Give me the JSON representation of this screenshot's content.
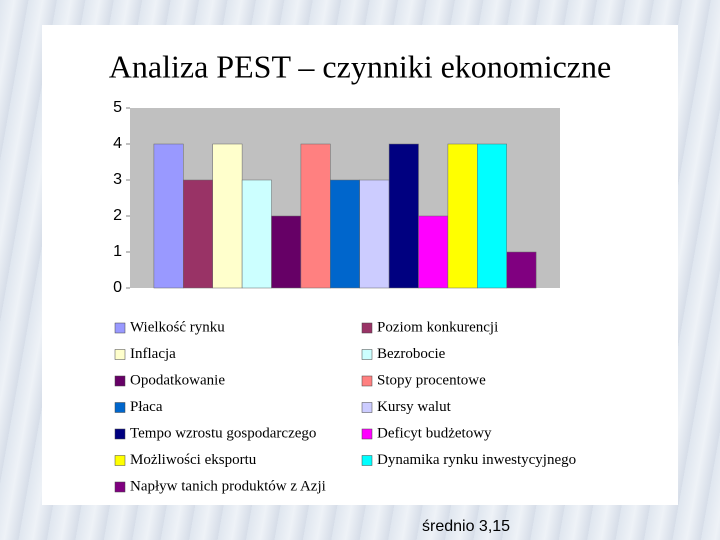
{
  "chart_data": {
    "type": "bar",
    "title": "Analiza PEST – czynniki ekonomiczne",
    "series": [
      {
        "name": "Wielkość rynku",
        "color": "#9999ff",
        "values": [
          4
        ]
      },
      {
        "name": "Poziom konkurencji",
        "color": "#993366",
        "values": [
          3
        ]
      },
      {
        "name": "Inflacja",
        "color": "#ffffcc",
        "values": [
          4
        ]
      },
      {
        "name": "Bezrobocie",
        "color": "#ccffff",
        "values": [
          3
        ]
      },
      {
        "name": "Opodatkowanie",
        "color": "#660066",
        "values": [
          2
        ]
      },
      {
        "name": "Stopy procentowe",
        "color": "#ff8080",
        "values": [
          4
        ]
      },
      {
        "name": "Płaca",
        "color": "#0066cc",
        "values": [
          3
        ]
      },
      {
        "name": "Kursy walut",
        "color": "#ccccff",
        "values": [
          3
        ]
      },
      {
        "name": "Tempo wzrostu gospodarczego",
        "color": "#000080",
        "values": [
          4
        ]
      },
      {
        "name": "Deficyt budżetowy",
        "color": "#ff00ff",
        "values": [
          2
        ]
      },
      {
        "name": "Możliwości eksportu",
        "color": "#ffff00",
        "values": [
          4
        ]
      },
      {
        "name": "Dynamika rynku inwestycyjnego",
        "color": "#00ffff",
        "values": [
          4
        ]
      },
      {
        "name": "Napływ tanich produktów z Azji",
        "color": "#800080",
        "values": [
          1
        ]
      }
    ],
    "ylim": [
      0,
      5
    ],
    "yticks": [
      0,
      1,
      2,
      3,
      4,
      5
    ],
    "grid": false,
    "footnote": "średnio 3,15"
  }
}
